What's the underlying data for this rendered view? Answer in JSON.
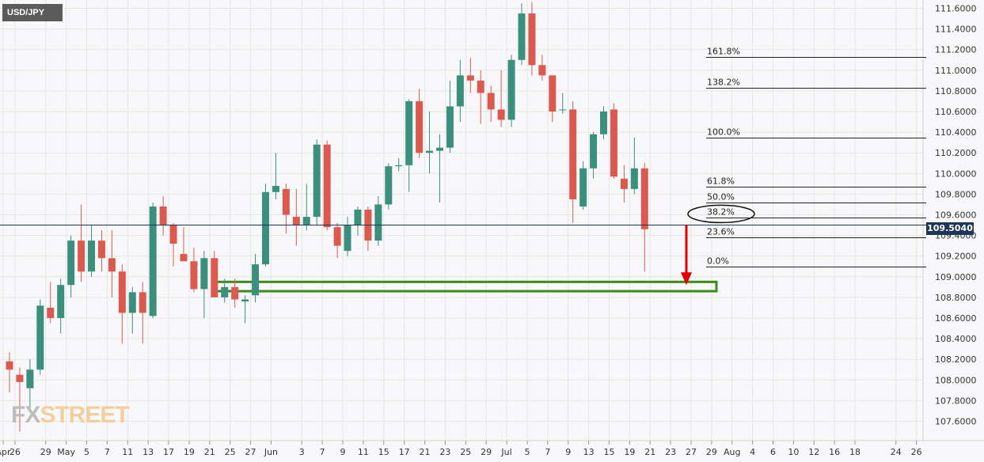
{
  "symbol": "USD/JPY",
  "current_price_label": "109.5040",
  "logo": {
    "part1": "FX",
    "part2": "STREET"
  },
  "colors": {
    "bull": "#3b8f7d",
    "bear": "#db5a50",
    "price_line": "#1d3557",
    "support_box": "#3c8a1a",
    "arrow": "#e00000",
    "grid": "#e6e6e6"
  },
  "chart_data": {
    "type": "candlestick",
    "title": "USD/JPY",
    "ylim": [
      107.5,
      111.65
    ],
    "y_ticks": [
      "111.6000",
      "111.4000",
      "111.2000",
      "111.0000",
      "110.8000",
      "110.6000",
      "110.4000",
      "110.2000",
      "110.0000",
      "109.8000",
      "109.6000",
      "109.4000",
      "109.2000",
      "109.0000",
      "108.8000",
      "108.6000",
      "108.4000",
      "108.2000",
      "108.0000",
      "107.8000",
      "107.6000"
    ],
    "x_tick_labels": [
      "Apr",
      "26",
      "29",
      "May",
      "5",
      "7",
      "11",
      "13",
      "17",
      "19",
      "21",
      "25",
      "27",
      "Jun",
      "3",
      "7",
      "9",
      "11",
      "15",
      "17",
      "21",
      "23",
      "25",
      "29",
      "Jul",
      "5",
      "7",
      "9",
      "13",
      "15",
      "19",
      "21",
      "23",
      "27",
      "29",
      "Aug",
      "4",
      "6",
      "10",
      "12",
      "16",
      "18",
      "24",
      "26"
    ],
    "current_price": 109.504,
    "candles": [
      {
        "date": "Apr 23",
        "o": 108.18,
        "h": 108.27,
        "l": 107.88,
        "c": 108.1
      },
      {
        "date": "Apr 26",
        "o": 108.05,
        "h": 108.12,
        "l": 107.5,
        "c": 107.98
      },
      {
        "date": "Apr 27",
        "o": 107.92,
        "h": 108.2,
        "l": 107.7,
        "c": 108.1
      },
      {
        "date": "Apr 28",
        "o": 108.1,
        "h": 108.78,
        "l": 108.05,
        "c": 108.72
      },
      {
        "date": "Apr 29",
        "o": 108.7,
        "h": 108.95,
        "l": 108.55,
        "c": 108.6
      },
      {
        "date": "Apr 30",
        "o": 108.6,
        "h": 108.98,
        "l": 108.45,
        "c": 108.92
      },
      {
        "date": "May 3",
        "o": 108.92,
        "h": 109.4,
        "l": 108.8,
        "c": 109.35
      },
      {
        "date": "May 4",
        "o": 109.35,
        "h": 109.7,
        "l": 108.95,
        "c": 109.05
      },
      {
        "date": "May 5",
        "o": 109.05,
        "h": 109.5,
        "l": 109.0,
        "c": 109.35
      },
      {
        "date": "May 6",
        "o": 109.35,
        "h": 109.45,
        "l": 109.05,
        "c": 109.18
      },
      {
        "date": "May 7",
        "o": 109.18,
        "h": 109.45,
        "l": 108.8,
        "c": 109.05
      },
      {
        "date": "May 10",
        "o": 109.05,
        "h": 109.12,
        "l": 108.35,
        "c": 108.65
      },
      {
        "date": "May 11",
        "o": 108.65,
        "h": 108.9,
        "l": 108.45,
        "c": 108.85
      },
      {
        "date": "May 12",
        "o": 108.85,
        "h": 108.95,
        "l": 108.35,
        "c": 108.65
      },
      {
        "date": "May 13",
        "o": 108.62,
        "h": 109.72,
        "l": 108.6,
        "c": 109.68
      },
      {
        "date": "May 14",
        "o": 109.68,
        "h": 109.78,
        "l": 109.4,
        "c": 109.5
      },
      {
        "date": "May 17",
        "o": 109.5,
        "h": 109.52,
        "l": 109.1,
        "c": 109.32
      },
      {
        "date": "May 18",
        "o": 109.22,
        "h": 109.48,
        "l": 109.15,
        "c": 109.15
      },
      {
        "date": "May 19",
        "o": 109.15,
        "h": 109.28,
        "l": 108.85,
        "c": 108.88
      },
      {
        "date": "May 20",
        "o": 108.88,
        "h": 109.25,
        "l": 108.6,
        "c": 109.18
      },
      {
        "date": "May 21",
        "o": 109.18,
        "h": 109.25,
        "l": 108.8,
        "c": 108.8
      },
      {
        "date": "May 24",
        "o": 108.8,
        "h": 108.98,
        "l": 108.75,
        "c": 108.9
      },
      {
        "date": "May 25",
        "o": 108.9,
        "h": 108.98,
        "l": 108.7,
        "c": 108.78
      },
      {
        "date": "May 26",
        "o": 108.76,
        "h": 108.82,
        "l": 108.55,
        "c": 108.78
      },
      {
        "date": "May 27",
        "o": 108.82,
        "h": 109.22,
        "l": 108.75,
        "c": 109.12
      },
      {
        "date": "May 28",
        "o": 109.12,
        "h": 109.9,
        "l": 109.1,
        "c": 109.82
      },
      {
        "date": "May 31",
        "o": 109.82,
        "h": 110.2,
        "l": 109.75,
        "c": 109.88
      },
      {
        "date": "Jun 1",
        "o": 109.85,
        "h": 109.9,
        "l": 109.42,
        "c": 109.6
      },
      {
        "date": "Jun 2",
        "o": 109.58,
        "h": 109.85,
        "l": 109.3,
        "c": 109.5
      },
      {
        "date": "Jun 3",
        "o": 109.5,
        "h": 109.9,
        "l": 109.45,
        "c": 109.58
      },
      {
        "date": "Jun 4",
        "o": 109.58,
        "h": 110.33,
        "l": 109.5,
        "c": 110.28
      },
      {
        "date": "Jun 7",
        "o": 110.28,
        "h": 110.32,
        "l": 109.45,
        "c": 109.48
      },
      {
        "date": "Jun 8",
        "o": 109.48,
        "h": 109.52,
        "l": 109.18,
        "c": 109.3
      },
      {
        "date": "Jun 9",
        "o": 109.25,
        "h": 109.58,
        "l": 109.2,
        "c": 109.5
      },
      {
        "date": "Jun 10",
        "o": 109.5,
        "h": 109.68,
        "l": 109.4,
        "c": 109.65
      },
      {
        "date": "Jun 11",
        "o": 109.65,
        "h": 109.68,
        "l": 109.25,
        "c": 109.35
      },
      {
        "date": "Jun 14",
        "o": 109.35,
        "h": 109.78,
        "l": 109.3,
        "c": 109.7
      },
      {
        "date": "Jun 15",
        "o": 109.7,
        "h": 110.1,
        "l": 109.65,
        "c": 110.07
      },
      {
        "date": "Jun 16",
        "o": 110.07,
        "h": 110.15,
        "l": 110.02,
        "c": 110.08
      },
      {
        "date": "Jun 17",
        "o": 110.08,
        "h": 110.72,
        "l": 109.82,
        "c": 110.7
      },
      {
        "date": "Jun 18",
        "o": 110.7,
        "h": 110.82,
        "l": 110.15,
        "c": 110.2
      },
      {
        "date": "Jun 21",
        "o": 110.2,
        "h": 110.6,
        "l": 110.0,
        "c": 110.22
      },
      {
        "date": "Jun 22",
        "o": 110.22,
        "h": 110.38,
        "l": 109.72,
        "c": 110.25
      },
      {
        "date": "Jun 23",
        "o": 110.25,
        "h": 110.9,
        "l": 110.2,
        "c": 110.65
      },
      {
        "date": "Jun 24",
        "o": 110.65,
        "h": 111.1,
        "l": 110.5,
        "c": 110.95
      },
      {
        "date": "Jun 25",
        "o": 110.95,
        "h": 111.12,
        "l": 110.78,
        "c": 110.9
      },
      {
        "date": "Jun 28",
        "o": 110.9,
        "h": 111.0,
        "l": 110.48,
        "c": 110.78
      },
      {
        "date": "Jun 29",
        "o": 110.78,
        "h": 110.85,
        "l": 110.5,
        "c": 110.62
      },
      {
        "date": "Jun 30",
        "o": 110.62,
        "h": 111.0,
        "l": 110.45,
        "c": 110.52
      },
      {
        "date": "Jul 1",
        "o": 110.52,
        "h": 111.15,
        "l": 110.45,
        "c": 111.1
      },
      {
        "date": "Jul 2",
        "o": 111.1,
        "h": 111.65,
        "l": 111.05,
        "c": 111.55
      },
      {
        "date": "Jul 5",
        "o": 111.55,
        "h": 111.66,
        "l": 110.95,
        "c": 111.05
      },
      {
        "date": "Jul 6",
        "o": 111.05,
        "h": 111.15,
        "l": 110.9,
        "c": 110.95
      },
      {
        "date": "Jul 7",
        "o": 110.95,
        "h": 110.95,
        "l": 110.5,
        "c": 110.6
      },
      {
        "date": "Jul 8",
        "o": 110.62,
        "h": 110.78,
        "l": 110.58,
        "c": 110.62
      },
      {
        "date": "Jul 9",
        "o": 110.62,
        "h": 110.7,
        "l": 109.52,
        "c": 109.75
      },
      {
        "date": "Jul 12",
        "o": 109.68,
        "h": 110.12,
        "l": 109.65,
        "c": 110.05
      },
      {
        "date": "Jul 13",
        "o": 110.05,
        "h": 110.4,
        "l": 109.95,
        "c": 110.38
      },
      {
        "date": "Jul 14",
        "o": 110.38,
        "h": 110.65,
        "l": 110.33,
        "c": 110.6
      },
      {
        "date": "Jul 15",
        "o": 110.62,
        "h": 110.68,
        "l": 109.95,
        "c": 109.97
      },
      {
        "date": "Jul 16",
        "o": 109.95,
        "h": 110.08,
        "l": 109.72,
        "c": 109.85
      },
      {
        "date": "Jul 19",
        "o": 109.85,
        "h": 110.35,
        "l": 109.8,
        "c": 110.05
      },
      {
        "date": "Jul 20",
        "o": 110.05,
        "h": 110.1,
        "l": 109.05,
        "c": 109.46
      }
    ],
    "fibonacci": [
      {
        "label": "161.8%",
        "value": 111.13
      },
      {
        "label": "138.2%",
        "value": 110.83
      },
      {
        "label": "100.0%",
        "value": 110.35
      },
      {
        "label": "61.8%",
        "value": 109.87
      },
      {
        "label": "50.0%",
        "value": 109.72
      },
      {
        "label": "38.2%",
        "value": 109.57
      },
      {
        "label": "23.6%",
        "value": 109.38
      },
      {
        "label": "0.0%",
        "value": 109.1
      }
    ],
    "highlighted_level": "38.2%",
    "support_zone": {
      "from_date": "May 20",
      "to_date": "Jul 27",
      "low": 108.86,
      "high": 108.95
    },
    "projection_arrow": {
      "date": "Jul 26",
      "from": 109.5,
      "to": 108.92
    }
  }
}
